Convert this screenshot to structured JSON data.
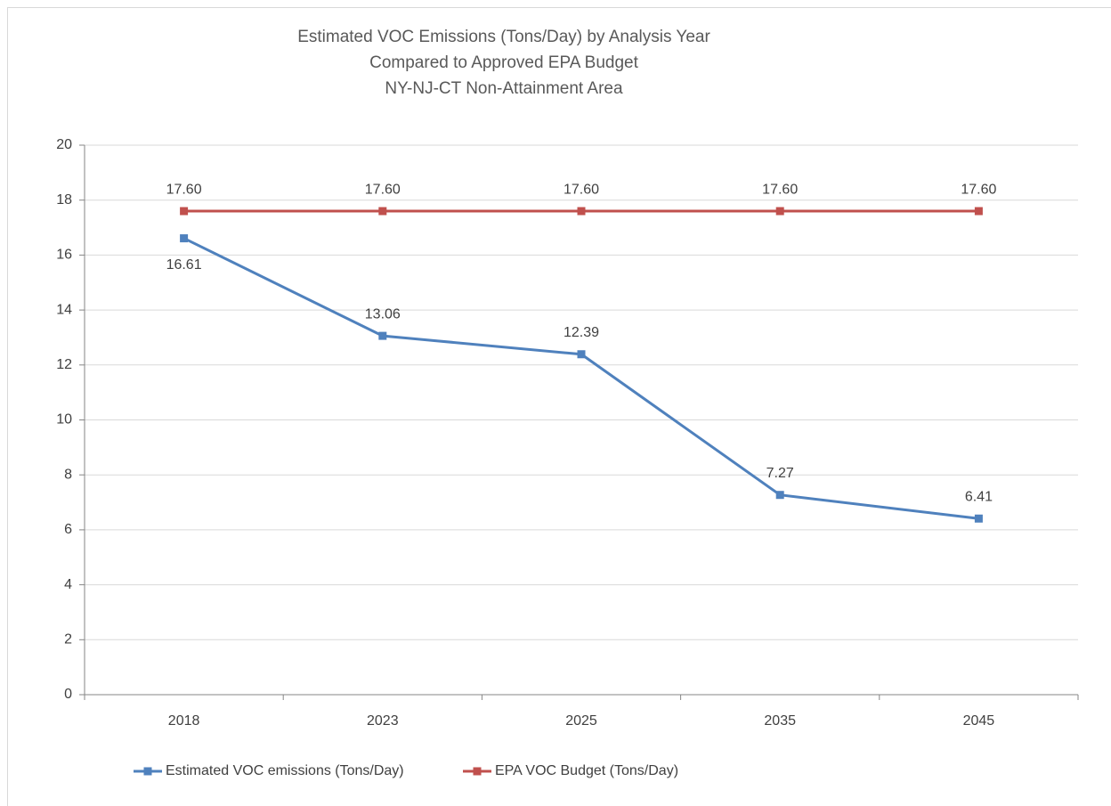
{
  "chart_data": {
    "type": "line",
    "title": [
      "Estimated VOC Emissions (Tons/Day) by Analysis Year",
      "Compared to Approved EPA Budget",
      "NY-NJ-CT Non-Attainment Area"
    ],
    "categories": [
      "2018",
      "2023",
      "2025",
      "2035",
      "2045"
    ],
    "series": [
      {
        "name": "Estimated VOC emissions (Tons/Day)",
        "color": "#4f81bd",
        "values": [
          16.61,
          13.06,
          12.39,
          7.27,
          6.41
        ]
      },
      {
        "name": "EPA VOC Budget (Tons/Day)",
        "color": "#c0504d",
        "values": [
          17.6,
          17.6,
          17.6,
          17.6,
          17.6
        ],
        "value_labels": [
          "17.60",
          "17.60",
          "17.60",
          "17.60",
          "17.60"
        ]
      }
    ],
    "ylim": [
      0,
      20
    ],
    "yticks": [
      0,
      2,
      4,
      6,
      8,
      10,
      12,
      14,
      16,
      18,
      20
    ],
    "grid": true,
    "legend": "bottom"
  }
}
